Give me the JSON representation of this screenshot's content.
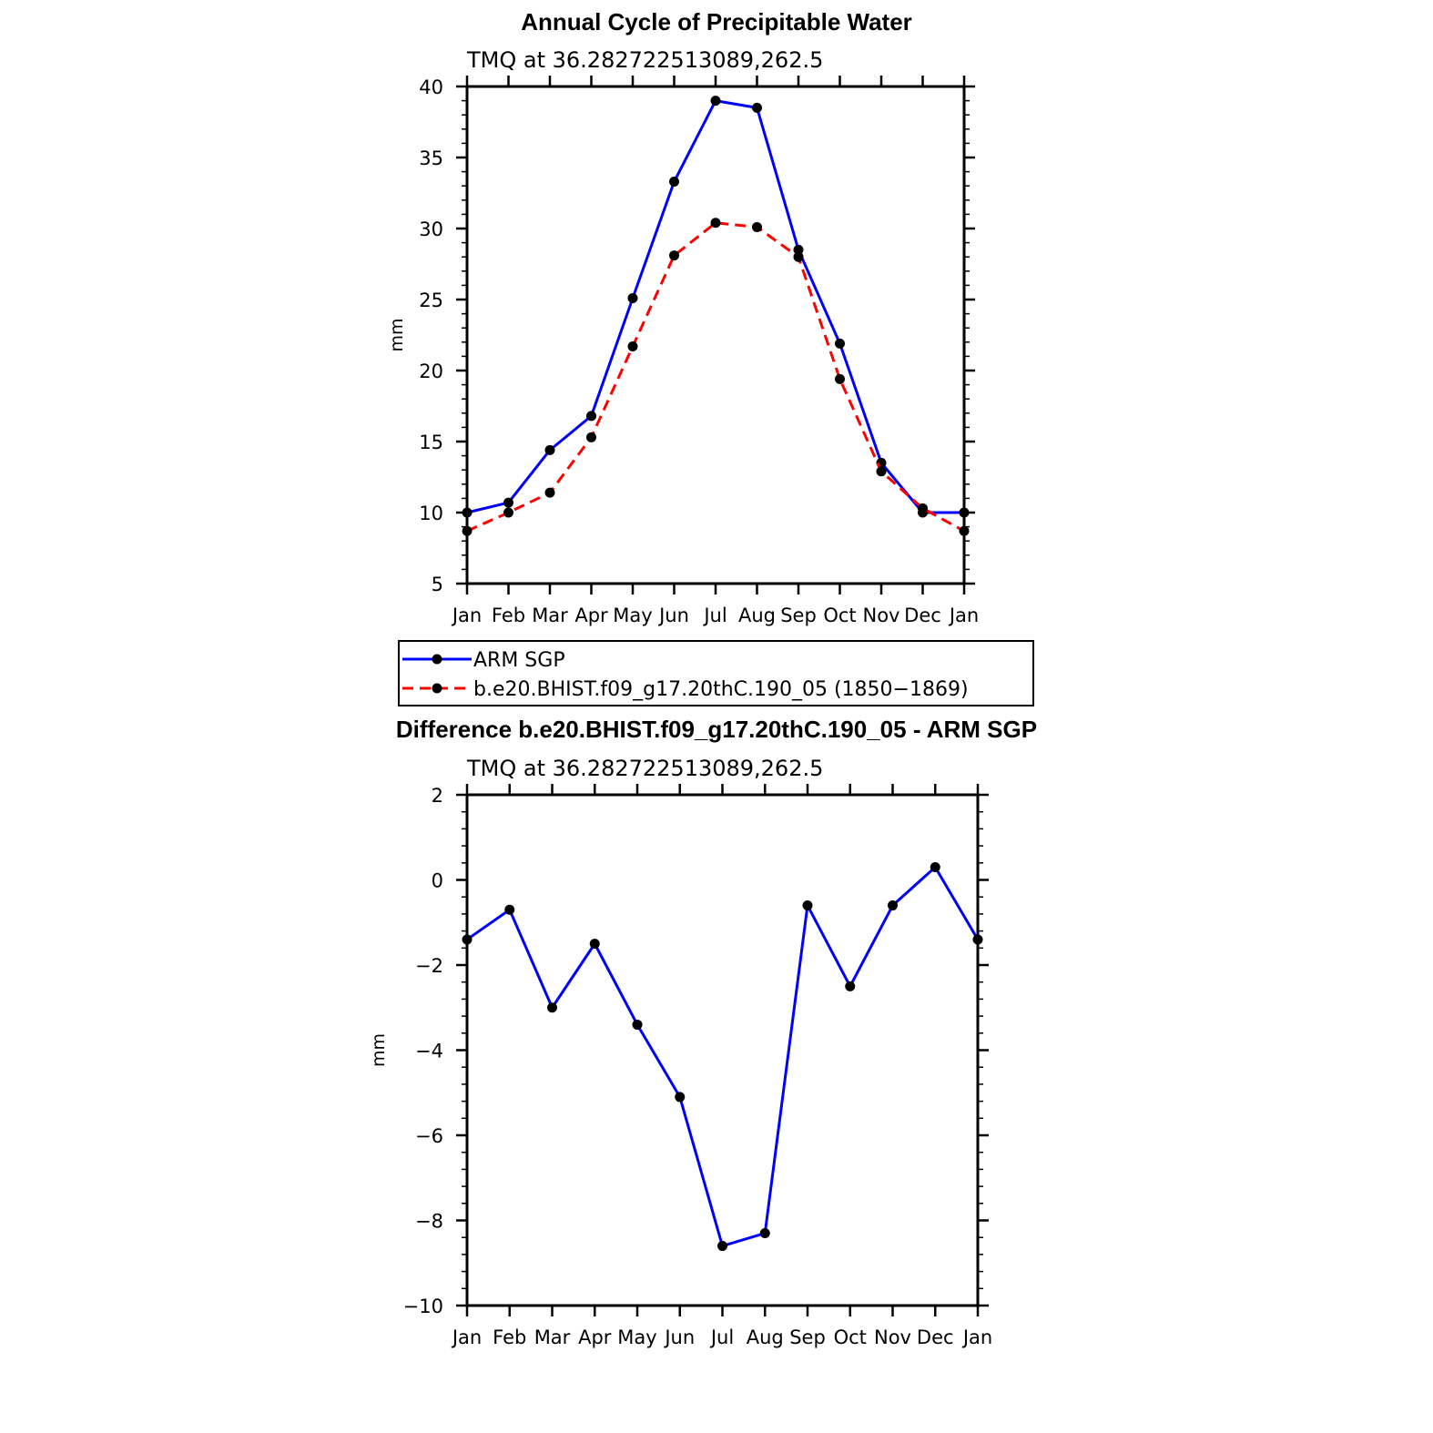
{
  "chart_data": [
    {
      "type": "line",
      "title": "Annual Cycle of Precipitable Water",
      "subtitle": "TMQ at 36.282722513089,262.5",
      "xlabel": "",
      "ylabel": "mm",
      "categories": [
        "Jan",
        "Feb",
        "Mar",
        "Apr",
        "May",
        "Jun",
        "Jul",
        "Aug",
        "Sep",
        "Oct",
        "Nov",
        "Dec",
        "Jan"
      ],
      "ylim": [
        5,
        40
      ],
      "yticks": [
        "5",
        "10",
        "15",
        "20",
        "25",
        "30",
        "35",
        "40"
      ],
      "series": [
        {
          "name": "ARM SGP",
          "color": "#0000ff",
          "dashed": false,
          "values": [
            10.0,
            10.7,
            14.4,
            16.8,
            25.1,
            33.3,
            39.0,
            38.5,
            28.5,
            21.9,
            13.5,
            10.0,
            10.0
          ]
        },
        {
          "name": "b.e20.BHIST.f09_g17.20thC.190_05 (1850−1869)",
          "color": "#ff0000",
          "dashed": true,
          "values": [
            8.7,
            10.0,
            11.4,
            15.3,
            21.7,
            28.1,
            30.4,
            30.1,
            28.0,
            19.4,
            12.9,
            10.3,
            8.7
          ]
        }
      ],
      "legend": "below"
    },
    {
      "type": "line",
      "title": "Difference b.e20.BHIST.f09_g17.20thC.190_05 - ARM SGP",
      "subtitle": "TMQ at 36.282722513089,262.5",
      "xlabel": "",
      "ylabel": "mm",
      "categories": [
        "Jan",
        "Feb",
        "Mar",
        "Apr",
        "May",
        "Jun",
        "Jul",
        "Aug",
        "Sep",
        "Oct",
        "Nov",
        "Dec",
        "Jan"
      ],
      "ylim": [
        -10,
        2
      ],
      "yticks": [
        "−10",
        "−8",
        "−6",
        "−4",
        "−2",
        "0",
        "2"
      ],
      "series": [
        {
          "name": "Difference",
          "color": "#0000ff",
          "dashed": false,
          "values": [
            -1.4,
            -0.7,
            -3.0,
            -1.5,
            -3.4,
            -5.1,
            -8.6,
            -8.3,
            -0.6,
            -2.5,
            -0.6,
            0.3,
            -1.4
          ]
        }
      ]
    }
  ]
}
